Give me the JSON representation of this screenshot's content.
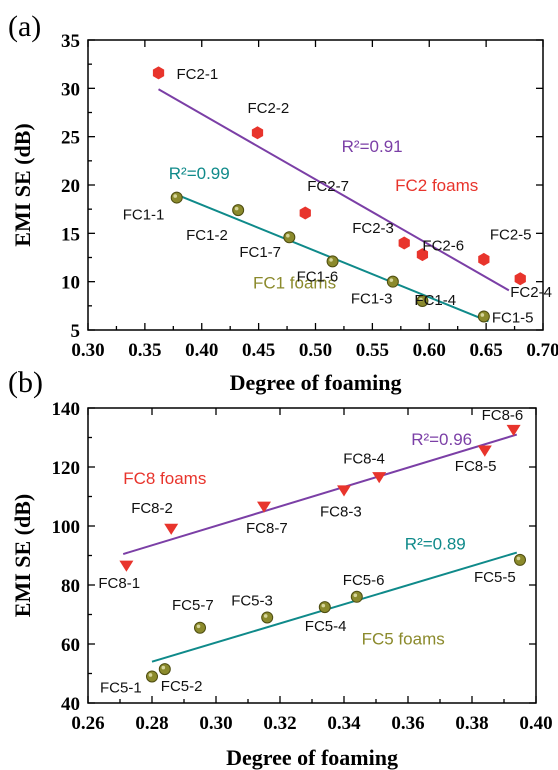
{
  "chart_data": [
    {
      "panel": "(a)",
      "type": "scatter",
      "xlabel": "Degree of foaming",
      "ylabel": "EMI SE (dB)",
      "xlim": [
        0.3,
        0.7
      ],
      "ylim": [
        5,
        35
      ],
      "xticks": [
        "0.30",
        "0.35",
        "0.40",
        "0.45",
        "0.50",
        "0.55",
        "0.60",
        "0.65",
        "0.70"
      ],
      "yticks": [
        "5",
        "10",
        "15",
        "20",
        "25",
        "30",
        "35"
      ],
      "series": [
        {
          "name": "FC2 foams",
          "color": "#e8342c",
          "marker": "hexagon",
          "points": [
            {
              "label": "FC2-1",
              "x": 0.362,
              "y": 31.6
            },
            {
              "label": "FC2-2",
              "x": 0.449,
              "y": 25.4
            },
            {
              "label": "FC2-7",
              "x": 0.491,
              "y": 17.1
            },
            {
              "label": "FC2-3",
              "x": 0.578,
              "y": 14.0
            },
            {
              "label": "FC2-6",
              "x": 0.594,
              "y": 12.8
            },
            {
              "label": "FC2-5",
              "x": 0.648,
              "y": 12.3
            },
            {
              "label": "FC2-4",
              "x": 0.68,
              "y": 10.3
            }
          ],
          "fit": {
            "x": [
              0.362,
              0.67
            ],
            "y": [
              29.9,
              9.1
            ],
            "color": "#7b3fa6",
            "r2": "R²=0.91"
          }
        },
        {
          "name": "FC1 foams",
          "color": "#8b8a2c",
          "marker": "circle",
          "points": [
            {
              "label": "FC1-1",
              "x": 0.378,
              "y": 18.7
            },
            {
              "label": "FC1-2",
              "x": 0.432,
              "y": 17.4
            },
            {
              "label": "FC1-7",
              "x": 0.477,
              "y": 14.6
            },
            {
              "label": "FC1-6",
              "x": 0.515,
              "y": 12.1
            },
            {
              "label": "FC1-3",
              "x": 0.568,
              "y": 10.0
            },
            {
              "label": "FC1-4",
              "x": 0.594,
              "y": 8.0
            },
            {
              "label": "FC1-5",
              "x": 0.648,
              "y": 6.4
            }
          ],
          "fit": {
            "x": [
              0.378,
              0.652
            ],
            "y": [
              19.0,
              5.9
            ],
            "color": "#0f8a8a",
            "r2": "R²=0.99"
          }
        }
      ]
    },
    {
      "panel": "(b)",
      "type": "scatter",
      "xlabel": "Degree of foaming",
      "ylabel": "EMI SE (dB)",
      "xlim": [
        0.26,
        0.4
      ],
      "ylim": [
        40,
        140
      ],
      "xticks": [
        "0.26",
        "0.28",
        "0.30",
        "0.32",
        "0.34",
        "0.36",
        "0.38",
        "0.40"
      ],
      "yticks": [
        "40",
        "60",
        "80",
        "100",
        "120",
        "140"
      ],
      "series": [
        {
          "name": "FC8 foams",
          "color": "#e8342c",
          "marker": "triangle-down",
          "points": [
            {
              "label": "FC8-1",
              "x": 0.272,
              "y": 86.5
            },
            {
              "label": "FC8-2",
              "x": 0.286,
              "y": 99.0
            },
            {
              "label": "FC8-7",
              "x": 0.315,
              "y": 106.5
            },
            {
              "label": "FC8-3",
              "x": 0.34,
              "y": 112.0
            },
            {
              "label": "FC8-4",
              "x": 0.351,
              "y": 116.5
            },
            {
              "label": "FC8-5",
              "x": 0.384,
              "y": 125.5
            },
            {
              "label": "FC8-6",
              "x": 0.393,
              "y": 132.5
            }
          ],
          "fit": {
            "x": [
              0.271,
              0.394
            ],
            "y": [
              90.5,
              131.0
            ],
            "color": "#7b3fa6",
            "r2": "R²=0.96"
          }
        },
        {
          "name": "FC5 foams",
          "color": "#8b8a2c",
          "marker": "circle",
          "points": [
            {
              "label": "FC5-1",
              "x": 0.28,
              "y": 49.0
            },
            {
              "label": "FC5-2",
              "x": 0.284,
              "y": 51.5
            },
            {
              "label": "FC5-7",
              "x": 0.295,
              "y": 65.5
            },
            {
              "label": "FC5-3",
              "x": 0.316,
              "y": 69.0
            },
            {
              "label": "FC5-4",
              "x": 0.334,
              "y": 72.5
            },
            {
              "label": "FC5-6",
              "x": 0.344,
              "y": 76.0
            },
            {
              "label": "FC5-5",
              "x": 0.395,
              "y": 88.5
            }
          ],
          "fit": {
            "x": [
              0.28,
              0.394
            ],
            "y": [
              54.0,
              91.0
            ],
            "color": "#0f8a8a",
            "r2": "R²=0.89"
          }
        }
      ]
    }
  ]
}
